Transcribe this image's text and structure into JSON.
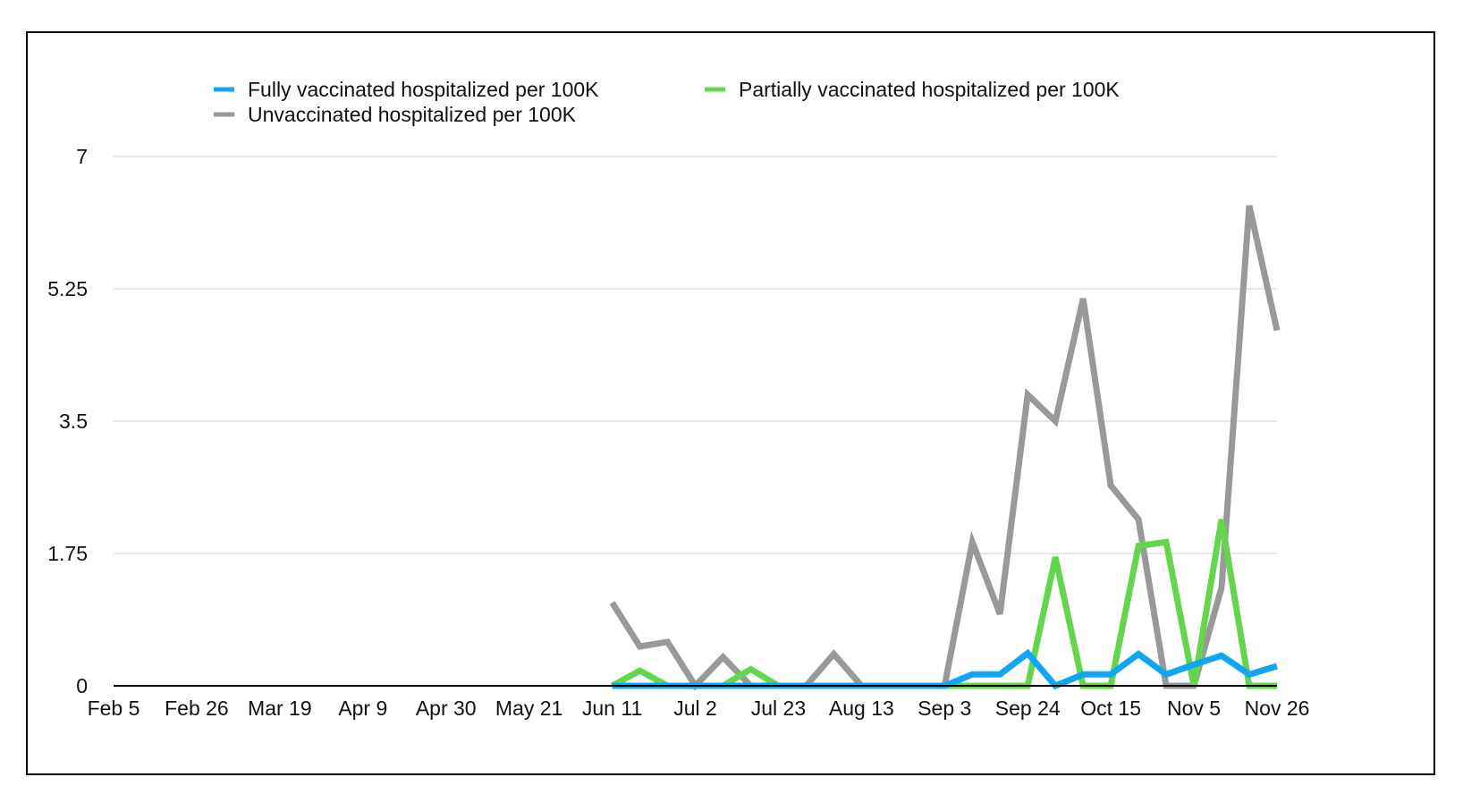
{
  "chart_data": {
    "type": "line",
    "title": "",
    "xlabel": "",
    "ylabel": "",
    "ylim": [
      0,
      7
    ],
    "grid": true,
    "legend_position": "top",
    "y_ticks": [
      "0",
      "1.75",
      "3.5",
      "5.25",
      "7"
    ],
    "x_ticks": [
      "Feb 5",
      "Feb 26",
      "Mar 19",
      "Apr 9",
      "Apr 30",
      "May 21",
      "Jun 11",
      "Jul 2",
      "Jul 23",
      "Aug 13",
      "Sep 3",
      "Sep 24",
      "Oct 15",
      "Nov 5",
      "Nov 26"
    ],
    "x": [
      "Jun 11",
      "Jun 18",
      "Jun 25",
      "Jul 2",
      "Jul 9",
      "Jul 16",
      "Jul 23",
      "Jul 30",
      "Aug 6",
      "Aug 13",
      "Aug 20",
      "Aug 27",
      "Sep 3",
      "Sep 10",
      "Sep 17",
      "Sep 24",
      "Oct 1",
      "Oct 8",
      "Oct 15",
      "Oct 22",
      "Oct 29",
      "Nov 5",
      "Nov 12",
      "Nov 19",
      "Nov 26"
    ],
    "series": [
      {
        "name": "Unvaccinated hospitalized per 100K",
        "color": "#999999",
        "values": [
          1.1,
          0.52,
          0.58,
          0.0,
          0.38,
          0.0,
          0.0,
          0.0,
          0.42,
          0.0,
          0.0,
          0.0,
          0.0,
          1.9,
          0.95,
          3.85,
          3.5,
          5.12,
          2.65,
          2.2,
          0.0,
          0.0,
          1.3,
          6.35,
          4.7
        ]
      },
      {
        "name": "Partially vaccinated hospitalized per 100K",
        "color": "#63d64e",
        "values": [
          0.0,
          0.2,
          0.0,
          0.0,
          0.0,
          0.22,
          0.0,
          0.0,
          0.0,
          0.0,
          0.0,
          0.0,
          0.0,
          0.0,
          0.0,
          0.0,
          1.7,
          0.0,
          0.0,
          1.85,
          1.9,
          0.0,
          2.2,
          0.0,
          0.0
        ]
      },
      {
        "name": "Fully vaccinated hospitalized per 100K",
        "color": "#12a6f2",
        "values": [
          0.0,
          0.0,
          0.0,
          0.0,
          0.0,
          0.0,
          0.0,
          0.0,
          0.0,
          0.0,
          0.0,
          0.0,
          0.0,
          0.15,
          0.15,
          0.43,
          0.0,
          0.15,
          0.15,
          0.42,
          0.15,
          0.28,
          0.4,
          0.15,
          0.26
        ]
      }
    ],
    "legend": [
      {
        "label": "Fully vaccinated hospitalized per 100K",
        "color": "#12a6f2"
      },
      {
        "label": "Partially vaccinated hospitalized per 100K",
        "color": "#63d64e"
      },
      {
        "label": "Unvaccinated hospitalized per 100K",
        "color": "#999999"
      }
    ],
    "colors": {
      "grid": "#cccccc",
      "axis": "#000000",
      "text": "#111111"
    }
  }
}
